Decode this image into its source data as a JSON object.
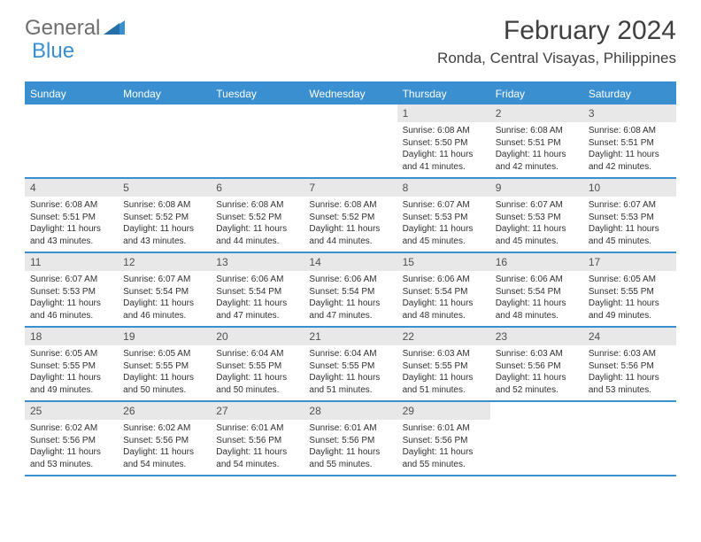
{
  "logo": {
    "text1": "General",
    "text2": "Blue"
  },
  "title": "February 2024",
  "location": "Ronda, Central Visayas, Philippines",
  "colors": {
    "accent": "#3a8fd0",
    "header_bg": "#3a8fd0",
    "header_text": "#ffffff",
    "daynum_bg": "#e8e8e8",
    "border": "#3a8fd0",
    "text_gray": "#6e6e6e",
    "body_text": "#303030"
  },
  "weekdays": [
    "Sunday",
    "Monday",
    "Tuesday",
    "Wednesday",
    "Thursday",
    "Friday",
    "Saturday"
  ],
  "weeks": [
    [
      {
        "num": "",
        "lines": []
      },
      {
        "num": "",
        "lines": []
      },
      {
        "num": "",
        "lines": []
      },
      {
        "num": "",
        "lines": []
      },
      {
        "num": "1",
        "lines": [
          "Sunrise: 6:08 AM",
          "Sunset: 5:50 PM",
          "Daylight: 11 hours",
          "and 41 minutes."
        ]
      },
      {
        "num": "2",
        "lines": [
          "Sunrise: 6:08 AM",
          "Sunset: 5:51 PM",
          "Daylight: 11 hours",
          "and 42 minutes."
        ]
      },
      {
        "num": "3",
        "lines": [
          "Sunrise: 6:08 AM",
          "Sunset: 5:51 PM",
          "Daylight: 11 hours",
          "and 42 minutes."
        ]
      }
    ],
    [
      {
        "num": "4",
        "lines": [
          "Sunrise: 6:08 AM",
          "Sunset: 5:51 PM",
          "Daylight: 11 hours",
          "and 43 minutes."
        ]
      },
      {
        "num": "5",
        "lines": [
          "Sunrise: 6:08 AM",
          "Sunset: 5:52 PM",
          "Daylight: 11 hours",
          "and 43 minutes."
        ]
      },
      {
        "num": "6",
        "lines": [
          "Sunrise: 6:08 AM",
          "Sunset: 5:52 PM",
          "Daylight: 11 hours",
          "and 44 minutes."
        ]
      },
      {
        "num": "7",
        "lines": [
          "Sunrise: 6:08 AM",
          "Sunset: 5:52 PM",
          "Daylight: 11 hours",
          "and 44 minutes."
        ]
      },
      {
        "num": "8",
        "lines": [
          "Sunrise: 6:07 AM",
          "Sunset: 5:53 PM",
          "Daylight: 11 hours",
          "and 45 minutes."
        ]
      },
      {
        "num": "9",
        "lines": [
          "Sunrise: 6:07 AM",
          "Sunset: 5:53 PM",
          "Daylight: 11 hours",
          "and 45 minutes."
        ]
      },
      {
        "num": "10",
        "lines": [
          "Sunrise: 6:07 AM",
          "Sunset: 5:53 PM",
          "Daylight: 11 hours",
          "and 45 minutes."
        ]
      }
    ],
    [
      {
        "num": "11",
        "lines": [
          "Sunrise: 6:07 AM",
          "Sunset: 5:53 PM",
          "Daylight: 11 hours",
          "and 46 minutes."
        ]
      },
      {
        "num": "12",
        "lines": [
          "Sunrise: 6:07 AM",
          "Sunset: 5:54 PM",
          "Daylight: 11 hours",
          "and 46 minutes."
        ]
      },
      {
        "num": "13",
        "lines": [
          "Sunrise: 6:06 AM",
          "Sunset: 5:54 PM",
          "Daylight: 11 hours",
          "and 47 minutes."
        ]
      },
      {
        "num": "14",
        "lines": [
          "Sunrise: 6:06 AM",
          "Sunset: 5:54 PM",
          "Daylight: 11 hours",
          "and 47 minutes."
        ]
      },
      {
        "num": "15",
        "lines": [
          "Sunrise: 6:06 AM",
          "Sunset: 5:54 PM",
          "Daylight: 11 hours",
          "and 48 minutes."
        ]
      },
      {
        "num": "16",
        "lines": [
          "Sunrise: 6:06 AM",
          "Sunset: 5:54 PM",
          "Daylight: 11 hours",
          "and 48 minutes."
        ]
      },
      {
        "num": "17",
        "lines": [
          "Sunrise: 6:05 AM",
          "Sunset: 5:55 PM",
          "Daylight: 11 hours",
          "and 49 minutes."
        ]
      }
    ],
    [
      {
        "num": "18",
        "lines": [
          "Sunrise: 6:05 AM",
          "Sunset: 5:55 PM",
          "Daylight: 11 hours",
          "and 49 minutes."
        ]
      },
      {
        "num": "19",
        "lines": [
          "Sunrise: 6:05 AM",
          "Sunset: 5:55 PM",
          "Daylight: 11 hours",
          "and 50 minutes."
        ]
      },
      {
        "num": "20",
        "lines": [
          "Sunrise: 6:04 AM",
          "Sunset: 5:55 PM",
          "Daylight: 11 hours",
          "and 50 minutes."
        ]
      },
      {
        "num": "21",
        "lines": [
          "Sunrise: 6:04 AM",
          "Sunset: 5:55 PM",
          "Daylight: 11 hours",
          "and 51 minutes."
        ]
      },
      {
        "num": "22",
        "lines": [
          "Sunrise: 6:03 AM",
          "Sunset: 5:55 PM",
          "Daylight: 11 hours",
          "and 51 minutes."
        ]
      },
      {
        "num": "23",
        "lines": [
          "Sunrise: 6:03 AM",
          "Sunset: 5:56 PM",
          "Daylight: 11 hours",
          "and 52 minutes."
        ]
      },
      {
        "num": "24",
        "lines": [
          "Sunrise: 6:03 AM",
          "Sunset: 5:56 PM",
          "Daylight: 11 hours",
          "and 53 minutes."
        ]
      }
    ],
    [
      {
        "num": "25",
        "lines": [
          "Sunrise: 6:02 AM",
          "Sunset: 5:56 PM",
          "Daylight: 11 hours",
          "and 53 minutes."
        ]
      },
      {
        "num": "26",
        "lines": [
          "Sunrise: 6:02 AM",
          "Sunset: 5:56 PM",
          "Daylight: 11 hours",
          "and 54 minutes."
        ]
      },
      {
        "num": "27",
        "lines": [
          "Sunrise: 6:01 AM",
          "Sunset: 5:56 PM",
          "Daylight: 11 hours",
          "and 54 minutes."
        ]
      },
      {
        "num": "28",
        "lines": [
          "Sunrise: 6:01 AM",
          "Sunset: 5:56 PM",
          "Daylight: 11 hours",
          "and 55 minutes."
        ]
      },
      {
        "num": "29",
        "lines": [
          "Sunrise: 6:01 AM",
          "Sunset: 5:56 PM",
          "Daylight: 11 hours",
          "and 55 minutes."
        ]
      },
      {
        "num": "",
        "lines": []
      },
      {
        "num": "",
        "lines": []
      }
    ]
  ]
}
